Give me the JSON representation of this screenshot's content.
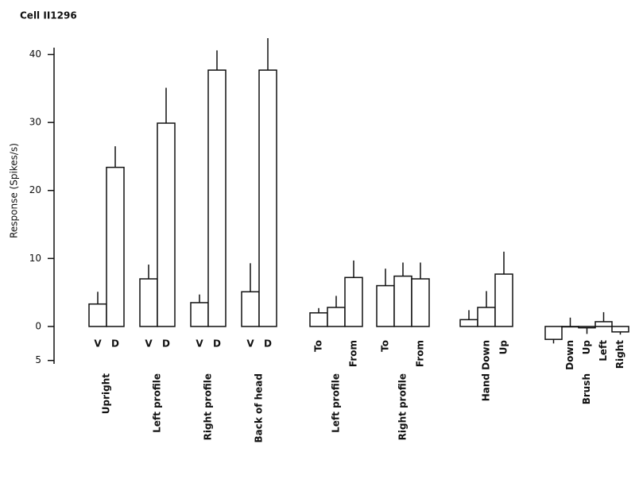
{
  "chart_data": {
    "type": "bar",
    "title": "Cell II1296",
    "y_label": "Response (Spikes/s)",
    "ylim": [
      -5.5,
      41
    ],
    "yticks": [
      {
        "value": -5,
        "label": "5"
      },
      0,
      10,
      20,
      30,
      40
    ],
    "groups": [
      {
        "name": "Upright",
        "bars": [
          {
            "label": "V",
            "value": 3.3,
            "error": 1.8
          },
          {
            "label": "D",
            "value": 23.4,
            "error": 3.1
          }
        ]
      },
      {
        "name": "Left profile",
        "bars": [
          {
            "label": "V",
            "value": 7.0,
            "error": 2.1
          },
          {
            "label": "D",
            "value": 29.9,
            "error": 5.2
          }
        ]
      },
      {
        "name": "Right profile",
        "bars": [
          {
            "label": "V",
            "value": 3.5,
            "error": 1.2
          },
          {
            "label": "D",
            "value": 37.7,
            "error": 2.9
          }
        ]
      },
      {
        "name": "Back of head",
        "bars": [
          {
            "label": "V",
            "value": 5.1,
            "error": 4.2
          },
          {
            "label": "D",
            "value": 37.7,
            "error": 4.7
          }
        ]
      },
      {
        "name": "Left profile",
        "bars": [
          {
            "label": "To",
            "value": 2.0,
            "error": 0.7
          },
          {
            "label": null,
            "value": 2.8,
            "error": 1.7
          },
          {
            "label": "From",
            "value": 7.2,
            "error": 2.5
          }
        ]
      },
      {
        "name": "Right profile",
        "bars": [
          {
            "label": "To",
            "value": 6.0,
            "error": 2.5
          },
          {
            "label": null,
            "value": 7.4,
            "error": 2.0
          },
          {
            "label": "From",
            "value": 7.0,
            "error": 2.4
          }
        ]
      },
      {
        "name": "Hand",
        "bars": [
          {
            "label": null,
            "value": 1.0,
            "error": 1.4
          },
          {
            "label": "Down",
            "value": 2.8,
            "error": 2.4
          },
          {
            "label": "Up",
            "value": 7.7,
            "error": 3.3
          }
        ]
      },
      {
        "name": "Brush",
        "bars": [
          {
            "label": null,
            "value": -1.9,
            "error": 0.6
          },
          {
            "label": "Down",
            "value": 0,
            "error": 1.3
          },
          {
            "label": "Up",
            "value": -0.2,
            "error": 0.9
          },
          {
            "label": "Left",
            "value": 0.7,
            "error": 1.4
          },
          {
            "label": "Right",
            "value": -0.8,
            "error": 0.4
          }
        ]
      }
    ]
  }
}
